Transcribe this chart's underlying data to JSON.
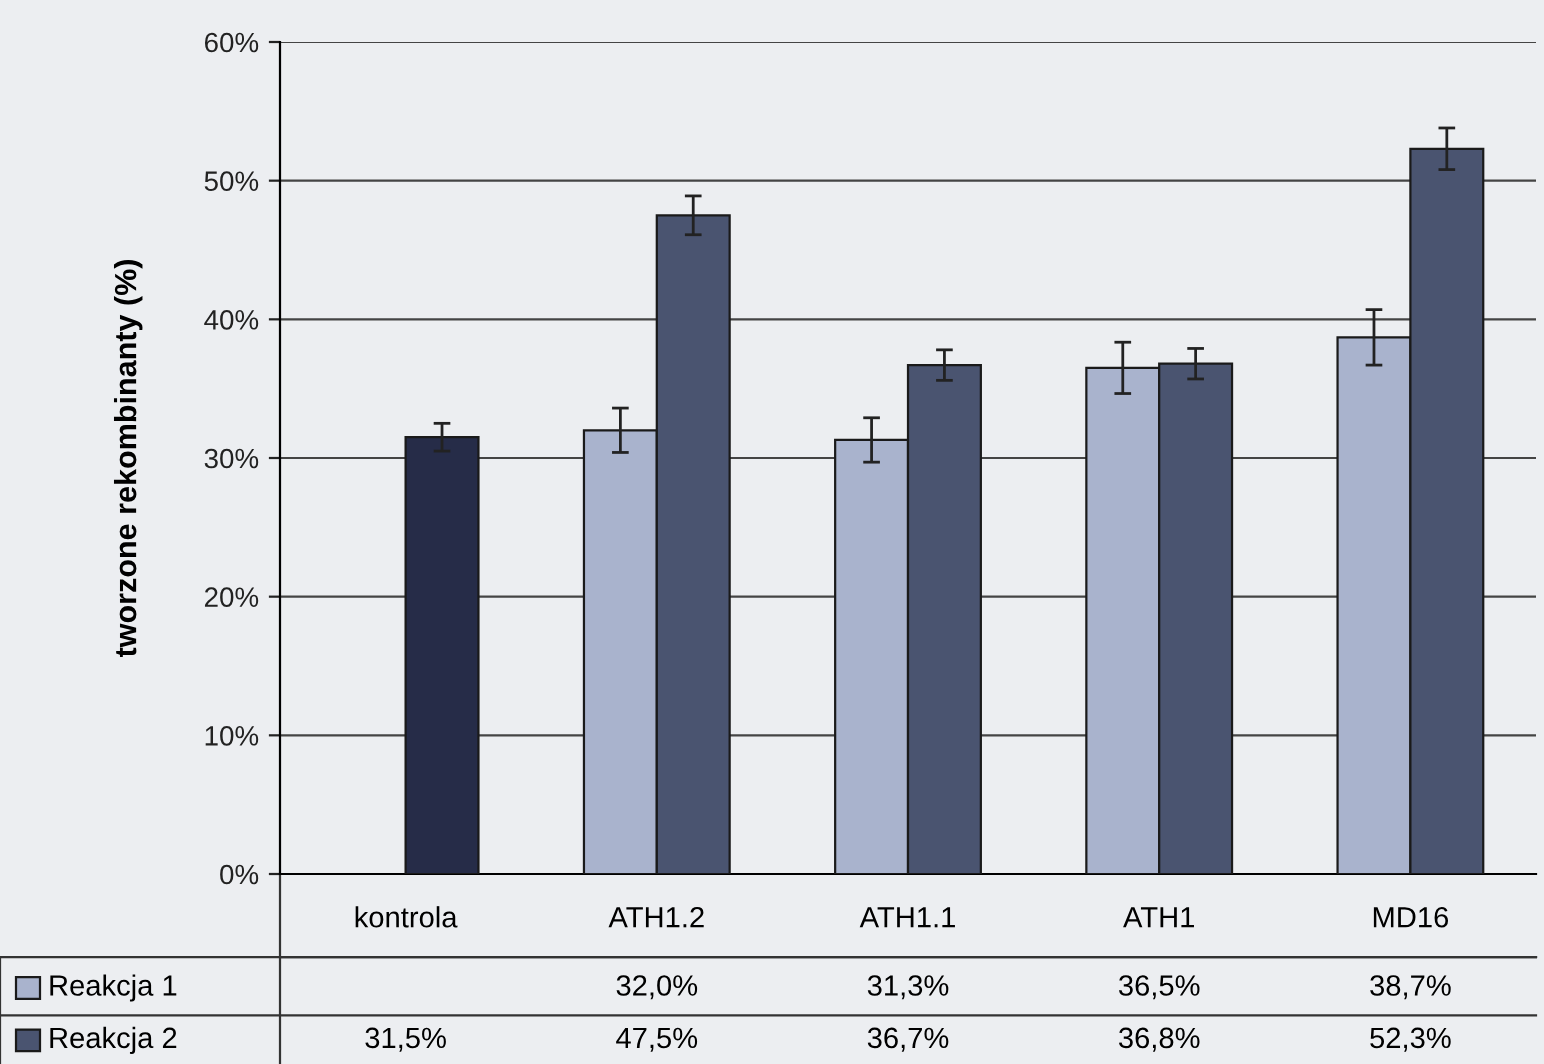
{
  "chart_data": {
    "type": "bar",
    "ylabel": "tworzone rekombinanty (%)",
    "categories": [
      "kontrola",
      "ATH1.2",
      "ATH1.1",
      "ATH1",
      "MD16"
    ],
    "series": [
      {
        "name": "Reakcja 1",
        "color": "#a9b3cd",
        "values": [
          null,
          32.0,
          31.3,
          36.5,
          38.7
        ],
        "errors": [
          null,
          1.6,
          1.6,
          1.85,
          2.0
        ],
        "value_labels": [
          null,
          "32,0%",
          "31,3%",
          "36,5%",
          "38,7%"
        ]
      },
      {
        "name": "Reakcja 2",
        "color": "#4a5470",
        "colors": [
          "#262c48",
          "#4a5470",
          "#4a5470",
          "#4a5470",
          "#4a5470"
        ],
        "values": [
          31.5,
          47.5,
          36.7,
          36.8,
          52.3
        ],
        "errors": [
          1.0,
          1.4,
          1.1,
          1.1,
          1.5
        ],
        "value_labels": [
          "31,5%",
          "47,5%",
          "36,7%",
          "36,8%",
          "52,3%"
        ]
      }
    ],
    "ylim": [
      0,
      60
    ],
    "yticks": [
      {
        "value": 0,
        "label": "0%"
      },
      {
        "value": 10,
        "label": "10%"
      },
      {
        "value": 20,
        "label": "20%"
      },
      {
        "value": 30,
        "label": "30%"
      },
      {
        "value": 40,
        "label": "40%"
      },
      {
        "value": 50,
        "label": "50%"
      },
      {
        "value": 60,
        "label": "60%"
      }
    ],
    "grid": "y",
    "legend": "bottom left"
  }
}
